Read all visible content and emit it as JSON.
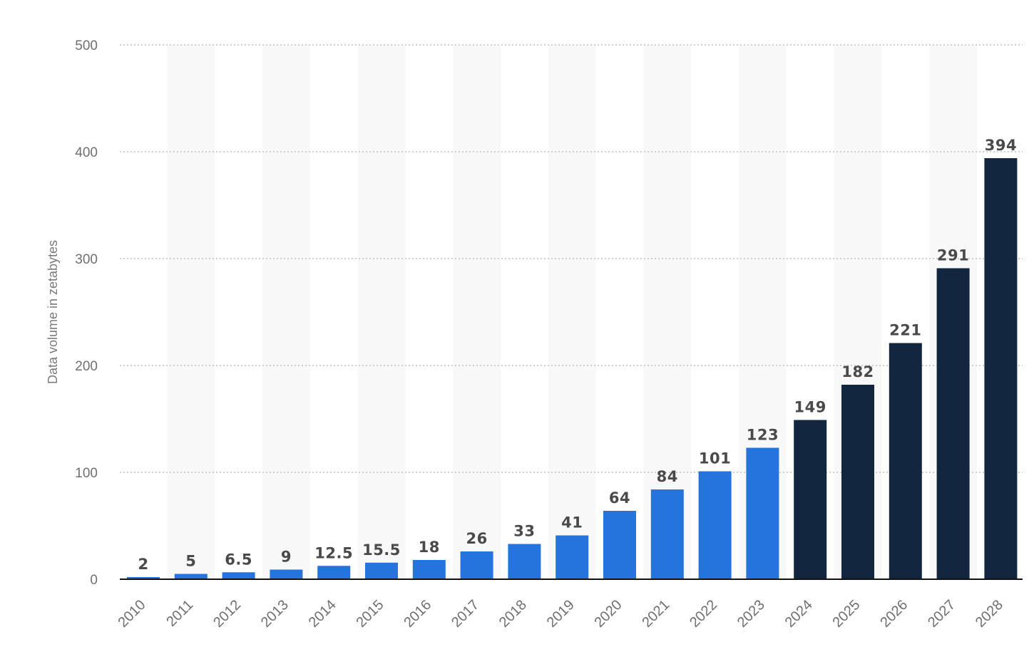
{
  "chart_data": {
    "type": "bar",
    "categories": [
      "2010",
      "2011",
      "2012",
      "2013",
      "2014",
      "2015",
      "2016",
      "2017",
      "2018",
      "2019",
      "2020",
      "2021",
      "2022",
      "2023",
      "2024",
      "2025",
      "2026",
      "2027",
      "2028"
    ],
    "values": [
      2,
      5,
      6.5,
      9,
      12.5,
      15.5,
      18,
      26,
      33,
      41,
      64,
      84,
      101,
      123,
      149,
      182,
      221,
      291,
      394
    ],
    "value_labels": [
      "2",
      "5",
      "6.5",
      "9",
      "12.5",
      "15.5",
      "18",
      "26",
      "33",
      "41",
      "64",
      "84",
      "101",
      "123",
      "149",
      "182",
      "221",
      "291",
      "394"
    ],
    "bar_colors": [
      "#2574dd",
      "#2574dd",
      "#2574dd",
      "#2574dd",
      "#2574dd",
      "#2574dd",
      "#2574dd",
      "#2574dd",
      "#2574dd",
      "#2574dd",
      "#2574dd",
      "#2574dd",
      "#2574dd",
      "#2574dd",
      "#12263f",
      "#12263f",
      "#12263f",
      "#12263f",
      "#12263f"
    ],
    "ylabel": "Data volume in zetabytes",
    "xlabel": "",
    "ylim": [
      0,
      500
    ],
    "yticks": [
      0,
      100,
      200,
      300,
      400,
      500
    ],
    "grid": true,
    "legend": "none",
    "colors": {
      "actual": "#2574dd",
      "forecast": "#12263f"
    }
  }
}
